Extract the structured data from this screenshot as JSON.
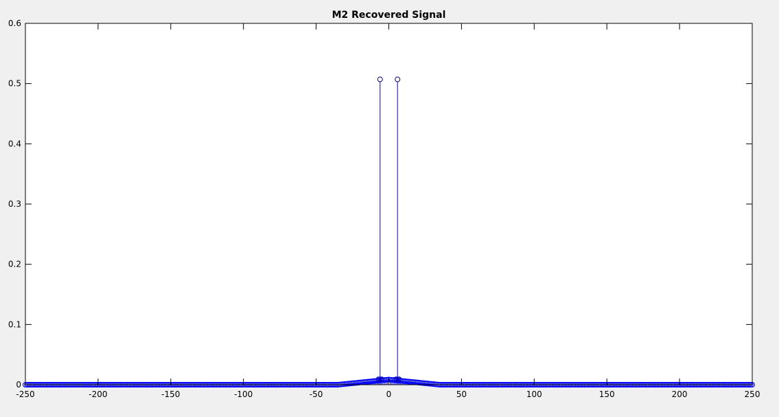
{
  "chart_data": {
    "type": "stem",
    "title": "M2 Recovered Signal",
    "xlabel": "",
    "ylabel": "",
    "xlim": [
      -250,
      250
    ],
    "ylim": [
      0,
      0.6
    ],
    "x_ticks": [
      "-250",
      "-200",
      "-150",
      "-100",
      "-50",
      "0",
      "50",
      "100",
      "150",
      "200",
      "250"
    ],
    "y_ticks": [
      "0",
      "0.1",
      "0.2",
      "0.3",
      "0.4",
      "0.5",
      "0.6"
    ],
    "grid": false,
    "legend": "none",
    "series": [
      {
        "color": "#0000ff",
        "marker": "circle",
        "x_range": [
          -250,
          250
        ],
        "baseline_values_approx": 0,
        "peaks": [
          {
            "x": -6,
            "y": 0.507
          },
          {
            "x": 6,
            "y": 0.507
          }
        ],
        "near_peak_values": [
          {
            "x": -7,
            "y": 0.009
          },
          {
            "x": -5,
            "y": 0.009
          },
          {
            "x": 5,
            "y": 0.009
          },
          {
            "x": 7,
            "y": 0.009
          }
        ]
      }
    ]
  },
  "colors": {
    "background": "#f0f0f0",
    "axes_background": "#ffffff",
    "stem": "#0000ff",
    "marker": "#00008b"
  }
}
